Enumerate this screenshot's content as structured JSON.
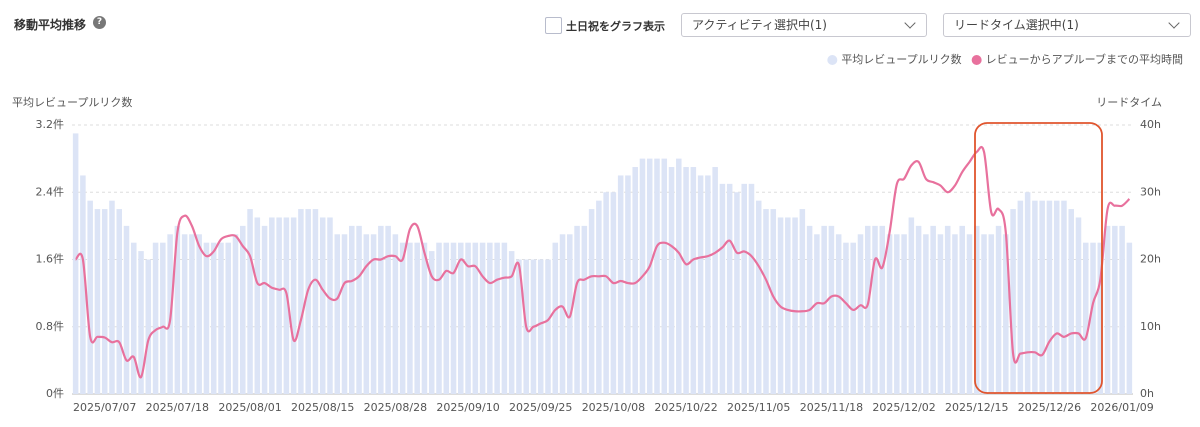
{
  "header": {
    "title": "移動平均推移",
    "help_icon": "?",
    "checkbox_label": "土日祝をグラフ表示",
    "dropdowns": [
      "アクティビティ選択中(1)",
      "リードタイム選択中(1)"
    ]
  },
  "chart_data": {
    "type": "combo",
    "ylabel": "平均レビュープルリク数",
    "y2label": "リードタイム",
    "grid": true,
    "legend": "top-right",
    "categories": [
      null,
      null,
      null,
      null,
      "2025/07/07",
      null,
      null,
      null,
      null,
      null,
      null,
      null,
      null,
      null,
      "2025/07/18",
      null,
      null,
      null,
      null,
      null,
      null,
      null,
      null,
      null,
      "2025/08/01",
      null,
      null,
      null,
      null,
      null,
      null,
      null,
      null,
      null,
      "2025/08/15",
      null,
      null,
      null,
      null,
      null,
      null,
      null,
      null,
      null,
      "2025/08/28",
      null,
      null,
      null,
      null,
      null,
      null,
      null,
      null,
      null,
      "2025/09/10",
      null,
      null,
      null,
      null,
      null,
      null,
      null,
      null,
      null,
      "2025/09/25",
      null,
      null,
      null,
      null,
      null,
      null,
      null,
      null,
      null,
      "2025/10/08",
      null,
      null,
      null,
      null,
      null,
      null,
      null,
      null,
      null,
      "2025/10/22",
      null,
      null,
      null,
      null,
      null,
      null,
      null,
      null,
      null,
      "2025/11/05",
      null,
      null,
      null,
      null,
      null,
      null,
      null,
      null,
      null,
      "2025/11/18",
      null,
      null,
      null,
      null,
      null,
      null,
      null,
      null,
      null,
      "2025/12/02",
      null,
      null,
      null,
      null,
      null,
      null,
      null,
      null,
      null,
      "2025/12/15",
      null,
      null,
      null,
      null,
      null,
      null,
      null,
      null,
      null,
      "2025/12/26",
      null,
      null,
      null,
      null,
      null,
      null,
      null,
      null,
      null,
      "2026/01/09",
      null
    ],
    "ylim": [
      0,
      3.2
    ],
    "yticks": [
      {
        "value": 0,
        "label": "0件"
      },
      {
        "value": 0.8,
        "label": "0.8件"
      },
      {
        "value": 1.6,
        "label": "1.6件"
      },
      {
        "value": 2.4,
        "label": "2.4件"
      },
      {
        "value": 3.2,
        "label": "3.2件"
      }
    ],
    "y2lim": [
      0,
      40
    ],
    "y2ticks": [
      {
        "value": 0,
        "label": "0h"
      },
      {
        "value": 10,
        "label": "10h"
      },
      {
        "value": 20,
        "label": "20h"
      },
      {
        "value": 30,
        "label": "30h"
      },
      {
        "value": 40,
        "label": "40h"
      }
    ],
    "series": [
      {
        "name": "平均レビュープルリク数",
        "type": "bar",
        "color": "#dce4f6",
        "values": [
          3.1,
          2.6,
          2.3,
          2.2,
          2.2,
          2.3,
          2.2,
          2.0,
          1.8,
          1.7,
          1.6,
          1.8,
          1.8,
          1.9,
          2.0,
          1.9,
          1.9,
          1.9,
          1.8,
          1.8,
          1.8,
          1.8,
          1.9,
          2.0,
          2.2,
          2.1,
          2.0,
          2.1,
          2.1,
          2.1,
          2.1,
          2.2,
          2.2,
          2.2,
          2.1,
          2.1,
          1.9,
          1.9,
          2.0,
          2.0,
          1.9,
          1.9,
          2.0,
          2.0,
          1.9,
          1.8,
          1.8,
          1.8,
          1.8,
          1.7,
          1.8,
          1.8,
          1.8,
          1.8,
          1.8,
          1.8,
          1.8,
          1.8,
          1.8,
          1.8,
          1.7,
          1.6,
          1.6,
          1.6,
          1.6,
          1.6,
          1.8,
          1.9,
          1.9,
          2.0,
          2.0,
          2.2,
          2.3,
          2.4,
          2.4,
          2.6,
          2.6,
          2.7,
          2.8,
          2.8,
          2.8,
          2.8,
          2.7,
          2.8,
          2.7,
          2.7,
          2.6,
          2.6,
          2.7,
          2.5,
          2.5,
          2.4,
          2.5,
          2.5,
          2.3,
          2.2,
          2.2,
          2.1,
          2.1,
          2.1,
          2.2,
          2.0,
          1.9,
          2.0,
          2.0,
          1.9,
          1.8,
          1.8,
          1.9,
          2.0,
          2.0,
          2.0,
          1.9,
          1.9,
          1.9,
          2.1,
          2.0,
          1.9,
          2.0,
          1.9,
          2.0,
          1.9,
          2.0,
          1.9,
          2.0,
          1.9,
          1.9,
          2.0,
          1.9,
          2.2,
          2.3,
          2.4,
          2.3,
          2.3,
          2.3,
          2.3,
          2.3,
          2.2,
          2.1,
          1.8,
          1.8,
          1.8,
          2.0,
          2.0,
          2.0,
          1.8
        ]
      },
      {
        "name": "レビューからアプルーブまでの平均時間",
        "type": "line",
        "axis": "y2",
        "color": "#e8719d",
        "values": [
          20,
          20,
          8.5,
          8.5,
          8.4,
          7.7,
          7.7,
          5,
          5.5,
          2.5,
          8,
          9.5,
          10,
          11,
          24,
          26.5,
          25,
          22,
          20.5,
          21.2,
          23,
          23.5,
          23.5,
          22,
          20.5,
          16.5,
          16.5,
          15.8,
          15.5,
          15,
          8,
          11,
          15.5,
          17,
          15.5,
          14.2,
          14.2,
          16.5,
          16.8,
          17.5,
          19,
          20,
          20,
          20.5,
          20.5,
          20,
          24.5,
          25,
          21,
          17.5,
          17,
          18.3,
          18,
          20,
          19,
          19,
          17.5,
          16.5,
          17,
          17.3,
          17.5,
          19.2,
          10,
          10,
          10.5,
          11,
          12.5,
          13,
          11.5,
          16.5,
          17,
          17.5,
          17.5,
          17.5,
          16.5,
          16.8,
          16.5,
          16.5,
          17.5,
          19,
          22,
          22.5,
          22,
          21,
          19.3,
          20,
          20.3,
          20.5,
          21,
          21.8,
          22.8,
          21,
          21.2,
          20.5,
          19,
          17,
          14.5,
          13,
          12.5,
          12.3,
          12.3,
          12.5,
          13.5,
          13.5,
          14.5,
          14.5,
          13.5,
          12.5,
          13.2,
          13.3,
          20,
          18.8,
          24,
          31.2,
          32,
          34,
          34.5,
          32,
          31.5,
          31,
          30,
          31,
          33,
          34.5,
          36,
          36,
          27,
          27.5,
          24,
          6,
          6,
          6.2,
          6.2,
          5.8,
          7.8,
          9,
          8.5,
          9,
          9,
          8.3,
          13.5,
          17,
          27.5,
          28,
          28,
          29
        ]
      }
    ]
  }
}
